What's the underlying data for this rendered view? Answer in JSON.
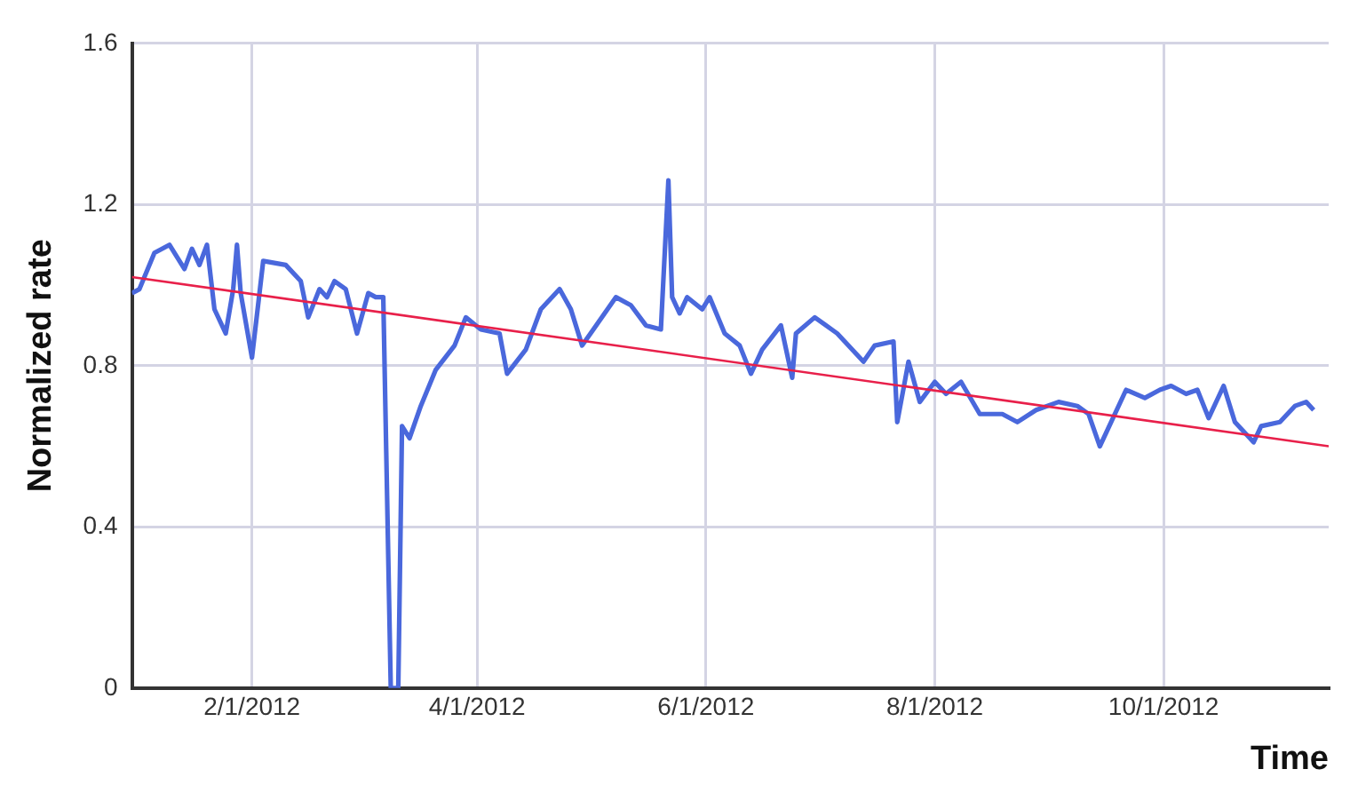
{
  "chart_data": {
    "type": "line",
    "xlabel": "Time",
    "ylabel": "Normalized rate",
    "xlim": [
      "2011-12-31",
      "2012-11-14"
    ],
    "xticks": [
      {
        "value": "2012-02-01",
        "label": "2/1/2012"
      },
      {
        "value": "2012-04-01",
        "label": "4/1/2012"
      },
      {
        "value": "2012-06-01",
        "label": "6/1/2012"
      },
      {
        "value": "2012-08-01",
        "label": "8/1/2012"
      },
      {
        "value": "2012-10-01",
        "label": "10/1/2012"
      }
    ],
    "ylim": [
      0,
      1.6
    ],
    "yticks": [
      0,
      0.4,
      0.8,
      1.2,
      1.6
    ],
    "grid": true,
    "legend": false,
    "marker": "none",
    "line_style": "solid",
    "series": [
      {
        "color": "#4a68dc",
        "x": [
          "2011-12-31",
          "2012-01-02",
          "2012-01-06",
          "2012-01-08",
          "2012-01-10",
          "2012-01-14",
          "2012-01-16",
          "2012-01-18",
          "2012-01-20",
          "2012-01-22",
          "2012-01-25",
          "2012-01-27",
          "2012-01-28",
          "2012-01-29",
          "2012-02-01",
          "2012-02-04",
          "2012-02-10",
          "2012-02-14",
          "2012-02-16",
          "2012-02-19",
          "2012-02-21",
          "2012-02-23",
          "2012-02-26",
          "2012-02-29",
          "2012-03-03",
          "2012-03-05",
          "2012-03-07",
          "2012-03-09",
          "2012-03-11",
          "2012-03-12",
          "2012-03-14",
          "2012-03-17",
          "2012-03-21",
          "2012-03-26",
          "2012-03-29",
          "2012-04-02",
          "2012-04-07",
          "2012-04-09",
          "2012-04-14",
          "2012-04-18",
          "2012-04-23",
          "2012-04-26",
          "2012-04-29",
          "2012-05-02",
          "2012-05-08",
          "2012-05-12",
          "2012-05-16",
          "2012-05-20",
          "2012-05-22",
          "2012-05-23",
          "2012-05-25",
          "2012-05-27",
          "2012-05-31",
          "2012-06-02",
          "2012-06-06",
          "2012-06-10",
          "2012-06-13",
          "2012-06-16",
          "2012-06-21",
          "2012-06-24",
          "2012-06-25",
          "2012-06-30",
          "2012-07-03",
          "2012-07-06",
          "2012-07-13",
          "2012-07-16",
          "2012-07-21",
          "2012-07-22",
          "2012-07-25",
          "2012-07-28",
          "2012-08-01",
          "2012-08-04",
          "2012-08-08",
          "2012-08-13",
          "2012-08-19",
          "2012-08-23",
          "2012-08-28",
          "2012-09-03",
          "2012-09-08",
          "2012-09-11",
          "2012-09-14",
          "2012-09-17",
          "2012-09-21",
          "2012-09-26",
          "2012-09-30",
          "2012-10-03",
          "2012-10-07",
          "2012-10-10",
          "2012-10-13",
          "2012-10-17",
          "2012-10-20",
          "2012-10-25",
          "2012-10-27",
          "2012-11-01",
          "2012-11-05",
          "2012-11-08",
          "2012-11-10"
        ],
        "values": [
          0.98,
          0.99,
          1.08,
          1.09,
          1.1,
          1.04,
          1.09,
          1.05,
          1.1,
          0.94,
          0.88,
          0.99,
          1.1,
          0.98,
          0.82,
          1.06,
          1.05,
          1.01,
          0.92,
          0.99,
          0.97,
          1.01,
          0.99,
          0.88,
          0.98,
          0.97,
          0.97,
          0,
          0,
          0.65,
          0.62,
          0.7,
          0.79,
          0.85,
          0.92,
          0.89,
          0.88,
          0.78,
          0.84,
          0.94,
          0.99,
          0.94,
          0.85,
          0.89,
          0.97,
          0.95,
          0.9,
          0.89,
          1.26,
          0.97,
          0.93,
          0.97,
          0.94,
          0.97,
          0.88,
          0.85,
          0.78,
          0.84,
          0.9,
          0.77,
          0.88,
          0.92,
          0.9,
          0.88,
          0.81,
          0.85,
          0.86,
          0.66,
          0.81,
          0.71,
          0.76,
          0.73,
          0.76,
          0.68,
          0.68,
          0.66,
          0.69,
          0.71,
          0.7,
          0.68,
          0.6,
          0.66,
          0.74,
          0.72,
          0.74,
          0.75,
          0.73,
          0.74,
          0.67,
          0.75,
          0.66,
          0.61,
          0.65,
          0.66,
          0.7,
          0.71,
          0.69
        ]
      },
      {
        "color": "#e8204a",
        "x": [
          "2011-12-31",
          "2012-11-14"
        ],
        "values": [
          1.02,
          0.6
        ]
      }
    ]
  }
}
